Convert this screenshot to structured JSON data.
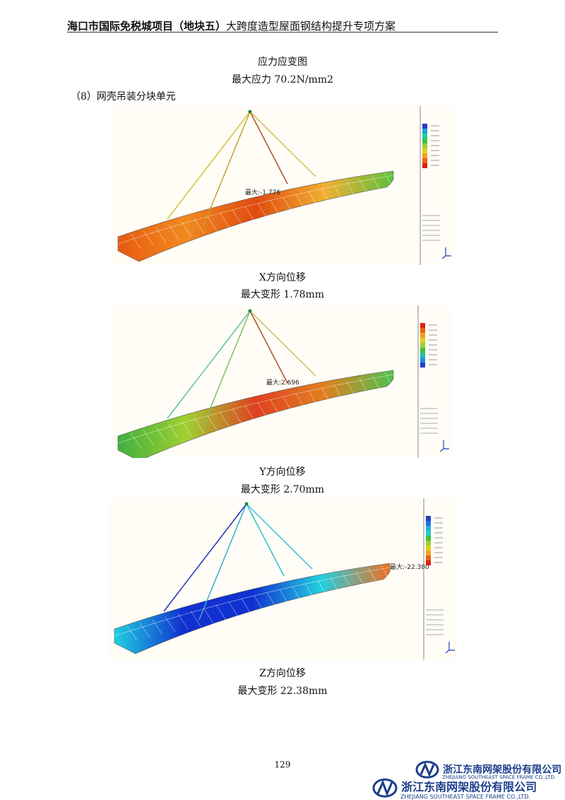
{
  "header": {
    "title_bold": "海口市国际免税城项目（地块五）",
    "title_rest": "大跨度造型屋面钢结构提升专项方案"
  },
  "section": {
    "heading": "应力应变图",
    "stress": "最大应力 70.2N/mm2",
    "subheading": "（8）网壳吊装分块单元"
  },
  "figures": [
    {
      "annotation": "最大:-1.776",
      "caption": "X方向位移",
      "result": "最大变形 1.78mm"
    },
    {
      "annotation": "最大:2.696",
      "caption": "Y方向位移",
      "result": "最大变形 2.70mm"
    },
    {
      "annotation": "最大:-22.380",
      "caption": "Z方向位移",
      "result": "最大变形 22.38mm"
    }
  ],
  "footer": {
    "page": "129",
    "company": "浙江东南网架股份有限公司",
    "company_en": "ZHEJIANG SOUTHEAST SPACE FRAME CO.,LTD."
  }
}
